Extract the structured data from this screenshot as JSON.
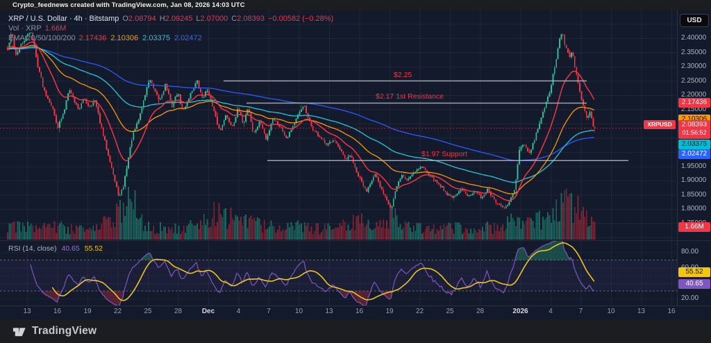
{
  "header": {
    "attribution": "Crypto_feednews created with TradingView.com, Jan 08, 2026 14:03 UTC"
  },
  "currency_button": "USD",
  "legend": {
    "symbol_title": "XRP / U.S. Dollar · 4h · Bitstamp",
    "ohlc": {
      "o_label": "O",
      "o": "2.08794",
      "h_label": "H",
      "h": "2.09245",
      "l_label": "L",
      "l": "2.07000",
      "c_label": "C",
      "c": "2.08393",
      "change": "−0.00582 (−0.28%)"
    },
    "volume": {
      "label": "Vol · XRP",
      "value": "1.66M"
    },
    "ema": {
      "label": "EMA 20/50/100/200",
      "values": [
        {
          "text": "2.17436",
          "color": "#f23645"
        },
        {
          "text": "2.10306",
          "color": "#ff9800"
        },
        {
          "text": "2.03375",
          "color": "#22c8dc"
        },
        {
          "text": "2.02472",
          "color": "#3b63ff"
        }
      ]
    }
  },
  "rsi_legend": {
    "title": "RSI (14, close)",
    "value1": "40.65",
    "color1": "#9575cd",
    "value2": "55.52",
    "color2": "#f0c41b"
  },
  "price_axis": {
    "ticks": [
      "2.40000",
      "2.35000",
      "2.30000",
      "2.25000",
      "2.20000",
      "2.15000",
      "2.00000",
      "1.95000",
      "1.90000",
      "1.85000",
      "1.80000",
      "1.75000"
    ],
    "floating_labels": [
      {
        "id": "ema20",
        "text": "2.17436",
        "bg": "#f23645",
        "fg": "#ffffff",
        "y": 148
      },
      {
        "id": "ema50",
        "text": "2.10306",
        "bg": "#ff9800",
        "fg": "#10131a",
        "y": 172
      },
      {
        "id": "last",
        "text": "2.08393",
        "sub": "01:56:52",
        "tag": "XRPUSD",
        "bg": "#f23645",
        "fg": "#ffffff",
        "y": 186
      },
      {
        "id": "ema100",
        "text": "2.03375",
        "bg": "#00bcd4",
        "fg": "#10131a",
        "y": 208
      },
      {
        "id": "ema200",
        "text": "2.02472",
        "bg": "#2962ff",
        "fg": "#ffffff",
        "y": 222
      },
      {
        "id": "volume",
        "text": "1.66M",
        "bg": "#f23645",
        "fg": "#ffffff",
        "y": 327
      },
      {
        "id": "rsi-ma",
        "text": "55.52",
        "bg": "#f2c50f",
        "fg": "#10131a",
        "y": 392
      },
      {
        "id": "rsi",
        "text": "40.65",
        "bg": "#7e57c2",
        "fg": "#ffffff",
        "y": 409
      }
    ]
  },
  "rsi_axis": {
    "ticks": [
      {
        "text": "80.00",
        "v": 80
      },
      {
        "text": "60.00",
        "v": 60
      },
      {
        "text": "20.00",
        "v": 20
      }
    ]
  },
  "time_axis": {
    "ticks": [
      {
        "label": "13",
        "day": 2
      },
      {
        "label": "16",
        "day": 5
      },
      {
        "label": "19",
        "day": 8
      },
      {
        "label": "22",
        "day": 11
      },
      {
        "label": "25",
        "day": 14
      },
      {
        "label": "28",
        "day": 17
      },
      {
        "label": "Dec",
        "day": 20,
        "strong": true
      },
      {
        "label": "4",
        "day": 23
      },
      {
        "label": "7",
        "day": 26
      },
      {
        "label": "10",
        "day": 29
      },
      {
        "label": "13",
        "day": 32
      },
      {
        "label": "16",
        "day": 35
      },
      {
        "label": "19",
        "day": 38
      },
      {
        "label": "22",
        "day": 41
      },
      {
        "label": "25",
        "day": 44
      },
      {
        "label": "28",
        "day": 47
      },
      {
        "label": "2026",
        "day": 51,
        "strong": true
      },
      {
        "label": "4",
        "day": 54
      },
      {
        "label": "7",
        "day": 57
      },
      {
        "label": "10",
        "day": 60
      },
      {
        "label": "13",
        "day": 63
      },
      {
        "label": "16",
        "day": 66
      }
    ]
  },
  "footer": {
    "brand": "TradingView"
  },
  "chart_data": {
    "type": "candlestick",
    "symbol": "XRPUSD",
    "exchange": "Bitstamp",
    "interval": "4h",
    "title": "XRP / U.S. Dollar",
    "ylim": [
      1.69,
      2.46
    ],
    "last_bar": {
      "open": 2.08794,
      "high": 2.09245,
      "low": 2.07,
      "close": 2.08393,
      "change": -0.00582,
      "change_pct": -0.28,
      "volume": "1.66M",
      "close_countdown": "01:56:52"
    },
    "indicators": {
      "ema": {
        "periods": [
          20,
          50,
          100,
          200
        ],
        "values": [
          2.17436,
          2.10306,
          2.03375,
          2.02472
        ]
      },
      "rsi": {
        "period": 14,
        "value": 40.65,
        "ma_value": 55.52,
        "overbought": 70,
        "oversold": 30
      }
    },
    "levels": [
      {
        "label": "$2.25",
        "price": 2.25,
        "x1": 322,
        "x2": 845,
        "label_x": 567
      },
      {
        "label": "$2.17 1st Resistance",
        "price": 2.172,
        "x1": 355,
        "x2": 845,
        "label_x": 541
      },
      {
        "label": "$1.97 Support",
        "price": 1.97,
        "x1": 385,
        "x2": 905,
        "label_x": 607
      }
    ],
    "colors": {
      "up": "#2bbf9a",
      "down": "#f23645",
      "ema": [
        "#f23645",
        "#ff9800",
        "#22c8dc",
        "#2e5bff"
      ],
      "rsi_line": "#7e57c2",
      "rsi_ma_line": "#f0c41b",
      "level_line": "#b8bcc6"
    },
    "price_waypoints": [
      [
        0,
        2.36
      ],
      [
        0.4,
        2.42
      ],
      [
        0.8,
        2.34
      ],
      [
        1.4,
        2.38
      ],
      [
        2.0,
        2.41
      ],
      [
        2.3,
        2.43
      ],
      [
        2.9,
        2.32
      ],
      [
        3.6,
        2.22
      ],
      [
        4.3,
        2.17
      ],
      [
        5.0,
        2.09
      ],
      [
        5.6,
        2.14
      ],
      [
        6.1,
        2.23
      ],
      [
        6.6,
        2.18
      ],
      [
        7.1,
        2.15
      ],
      [
        7.6,
        2.19
      ],
      [
        8.1,
        2.16
      ],
      [
        8.7,
        2.18
      ],
      [
        9.4,
        2.07
      ],
      [
        10.1,
        1.98
      ],
      [
        10.7,
        1.89
      ],
      [
        11.1,
        1.84
      ],
      [
        11.5,
        1.88
      ],
      [
        11.9,
        1.96
      ],
      [
        12.4,
        2.06
      ],
      [
        12.9,
        2.1
      ],
      [
        13.5,
        2.18
      ],
      [
        14.1,
        2.26
      ],
      [
        14.6,
        2.21
      ],
      [
        15.1,
        2.18
      ],
      [
        15.7,
        2.24
      ],
      [
        16.3,
        2.16
      ],
      [
        16.9,
        2.21
      ],
      [
        17.4,
        2.14
      ],
      [
        18.1,
        2.2
      ],
      [
        18.8,
        2.25
      ],
      [
        19.3,
        2.19
      ],
      [
        19.9,
        2.22
      ],
      [
        20.4,
        2.15
      ],
      [
        21.1,
        2.07
      ],
      [
        21.6,
        2.13
      ],
      [
        22.3,
        2.09
      ],
      [
        22.9,
        2.15
      ],
      [
        23.4,
        2.1
      ],
      [
        23.9,
        2.16
      ],
      [
        24.4,
        2.06
      ],
      [
        25.1,
        2.11
      ],
      [
        25.7,
        2.04
      ],
      [
        26.3,
        2.12
      ],
      [
        27.1,
        2.09
      ],
      [
        27.7,
        2.05
      ],
      [
        28.3,
        2.09
      ],
      [
        28.9,
        2.13
      ],
      [
        29.4,
        2.17
      ],
      [
        29.8,
        2.12
      ],
      [
        30.3,
        2.08
      ],
      [
        31.1,
        2.05
      ],
      [
        31.7,
        2.02
      ],
      [
        32.4,
        2.05
      ],
      [
        33.1,
        2.0
      ],
      [
        33.6,
        1.97
      ],
      [
        34.1,
        1.99
      ],
      [
        34.6,
        1.93
      ],
      [
        35.1,
        1.9
      ],
      [
        35.6,
        1.86
      ],
      [
        36.1,
        1.9
      ],
      [
        36.5,
        1.92
      ],
      [
        37.1,
        1.87
      ],
      [
        37.6,
        1.84
      ],
      [
        38.1,
        1.8
      ],
      [
        38.5,
        1.86
      ],
      [
        39.1,
        1.92
      ],
      [
        39.7,
        1.9
      ],
      [
        40.3,
        1.93
      ],
      [
        41.1,
        1.95
      ],
      [
        41.7,
        1.93
      ],
      [
        42.4,
        1.9
      ],
      [
        43.1,
        1.88
      ],
      [
        43.7,
        1.85
      ],
      [
        44.4,
        1.84
      ],
      [
        45.1,
        1.87
      ],
      [
        45.7,
        1.85
      ],
      [
        46.4,
        1.86
      ],
      [
        47.1,
        1.84
      ],
      [
        47.7,
        1.87
      ],
      [
        48.3,
        1.83
      ],
      [
        48.9,
        1.81
      ],
      [
        49.4,
        1.8
      ],
      [
        49.9,
        1.83
      ],
      [
        50.4,
        1.87
      ],
      [
        50.8,
        2.0
      ],
      [
        51.3,
        2.03
      ],
      [
        51.8,
        1.99
      ],
      [
        52.3,
        2.04
      ],
      [
        52.9,
        2.11
      ],
      [
        53.4,
        2.16
      ],
      [
        53.9,
        2.22
      ],
      [
        54.4,
        2.31
      ],
      [
        54.8,
        2.39
      ],
      [
        55.1,
        2.42
      ],
      [
        55.4,
        2.37
      ],
      [
        55.8,
        2.33
      ],
      [
        56.1,
        2.36
      ],
      [
        56.4,
        2.28
      ],
      [
        56.8,
        2.22
      ],
      [
        57.1,
        2.17
      ],
      [
        57.5,
        2.12
      ],
      [
        57.9,
        2.15
      ],
      [
        58.1,
        2.1
      ],
      [
        58.33,
        2.084
      ]
    ],
    "volume_envelope": [
      [
        0,
        0.35
      ],
      [
        2,
        0.3
      ],
      [
        5,
        0.3
      ],
      [
        8,
        0.22
      ],
      [
        10.5,
        0.5
      ],
      [
        11.5,
        0.75
      ],
      [
        12.3,
        1.0
      ],
      [
        13.1,
        0.5
      ],
      [
        14,
        0.3
      ],
      [
        17,
        0.25
      ],
      [
        19,
        0.35
      ],
      [
        20.5,
        0.6
      ],
      [
        21.5,
        0.55
      ],
      [
        23,
        0.45
      ],
      [
        25,
        0.35
      ],
      [
        27,
        0.3
      ],
      [
        29,
        0.32
      ],
      [
        31,
        0.25
      ],
      [
        33,
        0.3
      ],
      [
        34.8,
        0.45
      ],
      [
        35.6,
        0.5
      ],
      [
        36.5,
        0.35
      ],
      [
        37.9,
        0.55
      ],
      [
        38.6,
        0.5
      ],
      [
        40,
        0.3
      ],
      [
        42,
        0.25
      ],
      [
        44,
        0.3
      ],
      [
        46,
        0.22
      ],
      [
        47,
        0.38
      ],
      [
        48,
        0.26
      ],
      [
        49.5,
        0.35
      ],
      [
        50.9,
        0.55
      ],
      [
        52,
        0.4
      ],
      [
        53.5,
        0.5
      ],
      [
        54.5,
        0.7
      ],
      [
        55.2,
        0.85
      ],
      [
        55.9,
        0.75
      ],
      [
        56.5,
        0.8
      ],
      [
        57.2,
        0.55
      ],
      [
        58,
        0.4
      ],
      [
        58.33,
        0.35
      ]
    ]
  }
}
